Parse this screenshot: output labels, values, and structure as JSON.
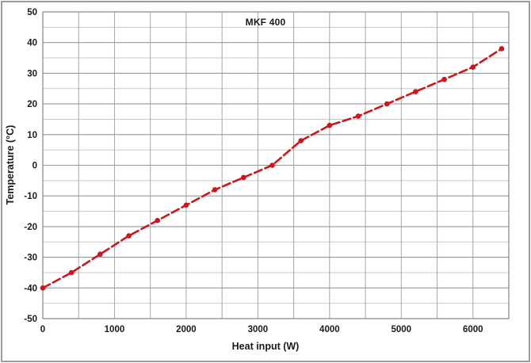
{
  "window": {
    "background": "#ffffff",
    "border_color": "#9b9b9b"
  },
  "chart_data": {
    "type": "line",
    "title": "MKF 400",
    "xlabel": "Heat input (W)",
    "ylabel": "Temperature (°C)",
    "x": [
      0,
      400,
      800,
      1200,
      1600,
      2000,
      2400,
      2800,
      3200,
      3600,
      4000,
      4400,
      4800,
      5200,
      5600,
      6000,
      6400
    ],
    "series": [
      {
        "name": "MKF 400",
        "values": [
          -40,
          -35,
          -29,
          -23,
          -18,
          -13,
          -8,
          -4,
          0,
          8,
          13,
          16,
          20,
          24,
          28,
          32,
          38
        ],
        "color": "#cd1619",
        "line_style": "dashed",
        "marker": "circle"
      }
    ],
    "xlim": [
      0,
      6500
    ],
    "ylim": [
      -50,
      50
    ],
    "x_ticks": [
      0,
      1000,
      2000,
      3000,
      4000,
      5000,
      6000
    ],
    "y_ticks": [
      50,
      40,
      30,
      20,
      10,
      0,
      -10,
      -20,
      -30,
      -40,
      -50
    ],
    "x_minor_step": 500,
    "y_minor_step": 5,
    "grid": true,
    "legend_position": "none"
  },
  "styles": {
    "grid_major": "#989898",
    "grid_minor": "#c9c9c9",
    "grid_vertical": "#a6a6a6",
    "frame": "#858585",
    "tick_text": "#1a1a1a",
    "line_width": 2.6,
    "dash_pattern": "10 4.5",
    "marker_radius": 3.3
  }
}
